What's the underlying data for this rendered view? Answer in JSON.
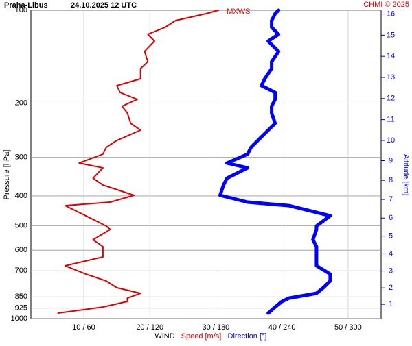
{
  "chart_data": {
    "type": "line",
    "title": "Praha-Libus",
    "subtitle": "24.10.2025 12 UTC",
    "credit": "CHMI © 2025",
    "annotation": "MXWS",
    "xlabel": "WIND",
    "ylabel": "Pressure [hPa]",
    "y2label": "Altitude [km]",
    "ylog": true,
    "grid": true,
    "y2color": "#0000ff",
    "creditcolor": "#e00000",
    "ylim": [
      1000,
      100
    ],
    "yticks": [
      100,
      200,
      300,
      400,
      500,
      600,
      700,
      850,
      925,
      1000
    ],
    "xlim": [
      2,
      55
    ],
    "x2lim": [
      12,
      330
    ],
    "xticks": [
      {
        "value": 10,
        "label": "10 / 60"
      },
      {
        "value": 20,
        "label": "20 / 120"
      },
      {
        "value": 30,
        "label": "30 / 180"
      },
      {
        "value": 40,
        "label": "40 / 240"
      },
      {
        "value": 50,
        "label": "50 / 300"
      }
    ],
    "y2ticks": [
      1,
      2,
      3,
      4,
      5,
      6,
      7,
      8,
      9,
      10,
      11,
      12,
      13,
      14,
      15,
      16
    ],
    "y": [
      100,
      102.6,
      108,
      113.6,
      119.6,
      125.9,
      136,
      146.8,
      154.5,
      166.8,
      175.6,
      184.8,
      194.5,
      204.7,
      215.4,
      232.6,
      244.8,
      264.4,
      278.3,
      292.9,
      313,
      324.5,
      350.4,
      368.8,
      398.1,
      419,
      430,
      464,
      501,
      514,
      555,
      584,
      631,
      674,
      717,
      755,
      794,
      828,
      858,
      880,
      917,
      960
    ],
    "series": [
      {
        "name": "Speed [m/s]",
        "color": "#e00000",
        "values": [
          30.4,
          28.5,
          23.9,
          22.3,
          19.7,
          20.7,
          19.2,
          19.7,
          18.6,
          18.6,
          15,
          15.5,
          18.1,
          15.8,
          16.6,
          17.1,
          18.6,
          15,
          13.4,
          12.9,
          9.3,
          12.9,
          11.4,
          12.9,
          17.6,
          14,
          7.2,
          10.3,
          13.4,
          14,
          11.4,
          12.9,
          12.9,
          7.2,
          10.3,
          13.4,
          15,
          18.6,
          16.6,
          16.6,
          12.9,
          6.1
        ]
      },
      {
        "name": "Direction [°]",
        "color": "#0000ff",
        "axis": "x2",
        "values": [
          236.9,
          233.8,
          230.6,
          230.6,
          236.9,
          227.5,
          236.9,
          230.6,
          230.6,
          224.4,
          221.3,
          233.8,
          233.8,
          230.6,
          230.6,
          233.8,
          227.5,
          218.1,
          211.9,
          208.8,
          190,
          208.8,
          190,
          186.9,
          183.8,
          208.8,
          246.3,
          283.8,
          271.3,
          271.3,
          268.1,
          271.3,
          271.3,
          271.3,
          283.8,
          283.8,
          277.5,
          271.3,
          246.3,
          240,
          233.8,
          227.5
        ]
      }
    ]
  }
}
